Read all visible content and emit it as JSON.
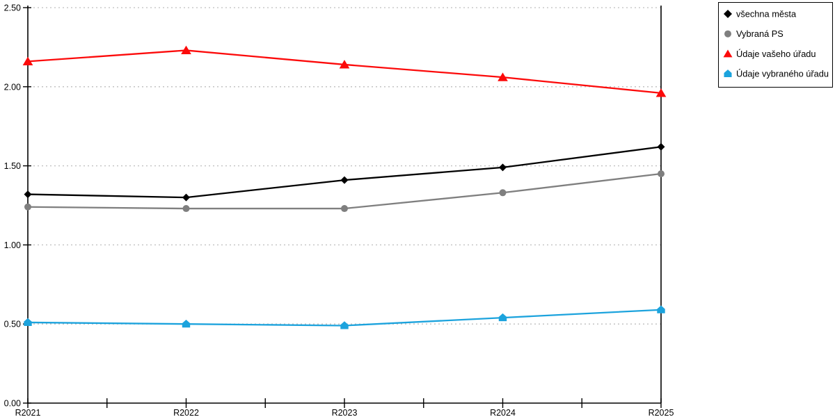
{
  "chart_data": {
    "type": "line",
    "title": "",
    "xlabel": "",
    "ylabel": "",
    "categories": [
      "R2021",
      "R2022",
      "R2023",
      "R2024",
      "R2025"
    ],
    "series": [
      {
        "name": "všechna města",
        "color": "#000000",
        "marker": "diamond",
        "values": [
          1.32,
          1.3,
          1.41,
          1.49,
          1.62
        ]
      },
      {
        "name": "Vybraná PS",
        "color": "#7f7f7f",
        "marker": "circle",
        "values": [
          1.24,
          1.23,
          1.23,
          1.33,
          1.45
        ]
      },
      {
        "name": "Údaje vašeho úřadu",
        "color": "#fc0a0a",
        "marker": "triangle",
        "values": [
          2.16,
          2.23,
          2.14,
          2.06,
          1.96
        ]
      },
      {
        "name": "Údaje vybraného úřadu",
        "color": "#1ca3dd",
        "marker": "pentagon",
        "values": [
          0.51,
          0.5,
          0.49,
          0.54,
          0.59
        ]
      }
    ],
    "ylim": [
      0,
      2.5
    ],
    "ytick_step": 0.5,
    "ytick_labels": [
      "0.00",
      "0.50",
      "1.00",
      "1.50",
      "2.00",
      "2.50"
    ],
    "grid": "horizontal-dotted",
    "gridline_color": "#bdbdbd",
    "axis_color": "#000000",
    "legend_position": "top-right",
    "legend_border_color": "#000000",
    "legend_background": "#ffffff"
  }
}
